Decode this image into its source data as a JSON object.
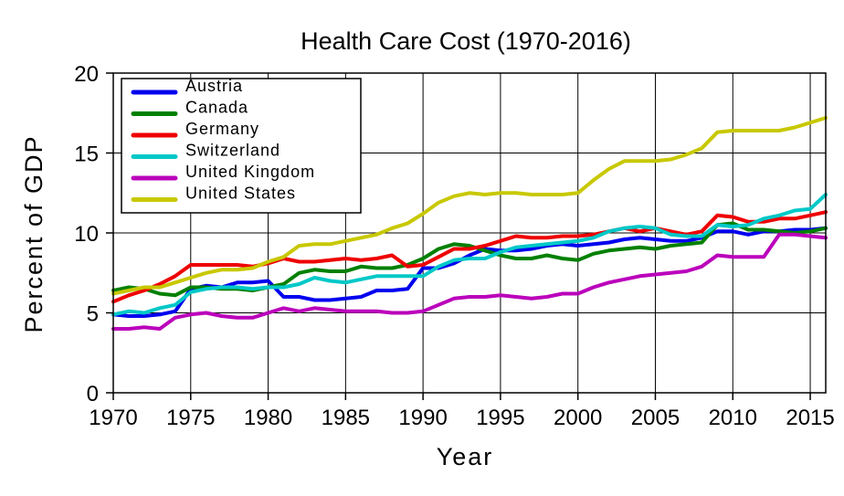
{
  "chart_data": {
    "type": "line",
    "title": "Health Care Cost (1970-2016)",
    "xlabel": "Year",
    "ylabel": "Percent of GDP",
    "xlim": [
      1970,
      2016
    ],
    "ylim": [
      0,
      20
    ],
    "xticks": [
      1970,
      1975,
      1980,
      1985,
      1990,
      1995,
      2000,
      2005,
      2010,
      2015
    ],
    "yticks": [
      0,
      5,
      10,
      15,
      20
    ],
    "grid": true,
    "legend_position": "top-left",
    "x": [
      1970,
      1971,
      1972,
      1973,
      1974,
      1975,
      1976,
      1977,
      1978,
      1979,
      1980,
      1981,
      1982,
      1983,
      1984,
      1985,
      1986,
      1987,
      1988,
      1989,
      1990,
      1991,
      1992,
      1993,
      1994,
      1995,
      1996,
      1997,
      1998,
      1999,
      2000,
      2001,
      2002,
      2003,
      2004,
      2005,
      2006,
      2007,
      2008,
      2009,
      2010,
      2011,
      2012,
      2013,
      2014,
      2015,
      2016
    ],
    "series": [
      {
        "name": "Austria",
        "color": "#0000ee",
        "values": [
          4.9,
          4.8,
          4.8,
          4.9,
          5.1,
          6.5,
          6.7,
          6.6,
          6.9,
          6.9,
          7.0,
          6.0,
          6.0,
          5.8,
          5.8,
          5.9,
          6.0,
          6.4,
          6.4,
          6.5,
          7.8,
          7.8,
          8.1,
          8.6,
          9.0,
          8.9,
          8.9,
          9.0,
          9.2,
          9.3,
          9.2,
          9.3,
          9.4,
          9.6,
          9.7,
          9.6,
          9.5,
          9.5,
          9.7,
          10.1,
          10.1,
          9.9,
          10.1,
          10.1,
          10.2,
          10.2,
          10.3
        ]
      },
      {
        "name": "Canada",
        "color": "#008000",
        "values": [
          6.4,
          6.6,
          6.5,
          6.2,
          6.1,
          6.6,
          6.6,
          6.5,
          6.5,
          6.4,
          6.6,
          6.8,
          7.5,
          7.7,
          7.6,
          7.6,
          7.9,
          7.8,
          7.8,
          8.0,
          8.4,
          9.0,
          9.3,
          9.2,
          8.9,
          8.6,
          8.4,
          8.4,
          8.6,
          8.4,
          8.3,
          8.7,
          8.9,
          9.0,
          9.1,
          9.0,
          9.2,
          9.3,
          9.4,
          10.5,
          10.6,
          10.2,
          10.2,
          10.1,
          10.0,
          10.1,
          10.3
        ]
      },
      {
        "name": "Germany",
        "color": "#ee0000",
        "values": [
          5.7,
          6.1,
          6.4,
          6.8,
          7.3,
          8.0,
          8.0,
          8.0,
          8.0,
          7.9,
          8.1,
          8.4,
          8.2,
          8.2,
          8.3,
          8.4,
          8.3,
          8.4,
          8.6,
          7.9,
          8.0,
          8.5,
          9.0,
          9.0,
          9.2,
          9.5,
          9.8,
          9.7,
          9.7,
          9.8,
          9.8,
          9.9,
          10.1,
          10.3,
          10.1,
          10.3,
          10.1,
          9.9,
          10.1,
          11.1,
          11.0,
          10.7,
          10.7,
          10.9,
          10.9,
          11.1,
          11.3
        ]
      },
      {
        "name": "Switzerland",
        "color": "#00c8c8",
        "values": [
          4.9,
          5.1,
          5.0,
          5.3,
          5.5,
          6.3,
          6.5,
          6.6,
          6.6,
          6.5,
          6.6,
          6.6,
          6.8,
          7.2,
          7.0,
          6.9,
          7.1,
          7.3,
          7.3,
          7.3,
          7.3,
          7.9,
          8.3,
          8.4,
          8.4,
          8.8,
          9.1,
          9.2,
          9.3,
          9.4,
          9.5,
          9.7,
          10.1,
          10.3,
          10.4,
          10.3,
          9.9,
          9.8,
          9.8,
          10.5,
          10.4,
          10.5,
          10.9,
          11.1,
          11.4,
          11.5,
          12.4
        ]
      },
      {
        "name": "United Kingdom",
        "color": "#bb00bb",
        "values": [
          4.0,
          4.0,
          4.1,
          4.0,
          4.7,
          4.9,
          5.0,
          4.8,
          4.7,
          4.7,
          5.0,
          5.3,
          5.1,
          5.3,
          5.2,
          5.1,
          5.1,
          5.1,
          5.0,
          5.0,
          5.1,
          5.5,
          5.9,
          6.0,
          6.0,
          6.1,
          6.0,
          5.9,
          6.0,
          6.2,
          6.2,
          6.6,
          6.9,
          7.1,
          7.3,
          7.4,
          7.5,
          7.6,
          7.9,
          8.6,
          8.5,
          8.5,
          8.5,
          9.9,
          9.9,
          9.8,
          9.7
        ]
      },
      {
        "name": "United States",
        "color": "#c8c800",
        "values": [
          6.2,
          6.4,
          6.6,
          6.6,
          6.9,
          7.2,
          7.5,
          7.7,
          7.7,
          7.8,
          8.2,
          8.5,
          9.2,
          9.3,
          9.3,
          9.5,
          9.7,
          9.9,
          10.3,
          10.6,
          11.2,
          11.9,
          12.3,
          12.5,
          12.4,
          12.5,
          12.5,
          12.4,
          12.4,
          12.4,
          12.5,
          13.3,
          14.0,
          14.5,
          14.5,
          14.5,
          14.6,
          14.9,
          15.3,
          16.3,
          16.4,
          16.4,
          16.4,
          16.4,
          16.6,
          16.9,
          17.2
        ]
      }
    ]
  }
}
